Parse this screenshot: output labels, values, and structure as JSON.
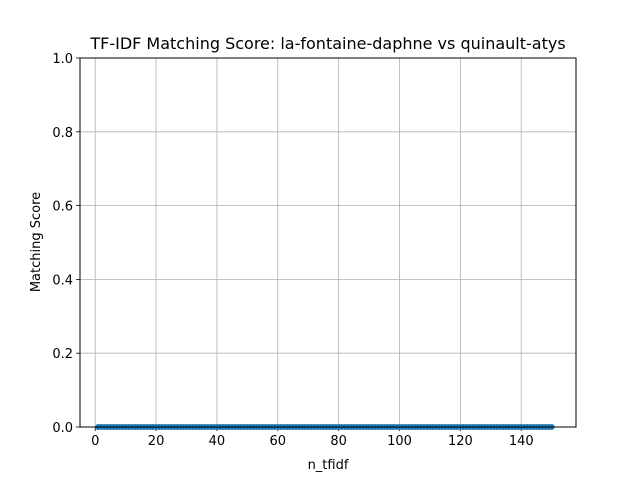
{
  "chart_data": {
    "type": "line",
    "title": "TF-IDF Matching Score: la-fontaine-daphne vs quinault-atys",
    "xlabel": "n_tfidf",
    "ylabel": "Matching Score",
    "xlim": [
      -5,
      158
    ],
    "ylim": [
      0,
      1.0
    ],
    "xticks": [
      0,
      20,
      40,
      60,
      80,
      100,
      120,
      140
    ],
    "yticks": [
      0.0,
      0.2,
      0.4,
      0.6,
      0.8,
      1.0
    ],
    "ytick_labels": [
      "0.0",
      "0.2",
      "0.4",
      "0.6",
      "0.8",
      "1.0"
    ],
    "grid": true,
    "series": [
      {
        "color": "#1f77b4",
        "marker": "circle",
        "x_start": 1,
        "x_end": 150,
        "x_step": 1,
        "y_value": 0.0
      }
    ]
  }
}
